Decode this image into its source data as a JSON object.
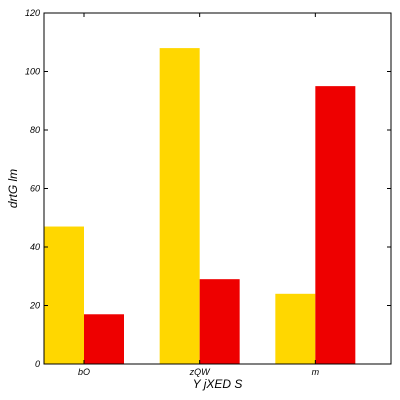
{
  "chart_data": {
    "type": "bar",
    "categories": [
      "bO",
      "zQW",
      "m"
    ],
    "series": [
      {
        "values": [
          47,
          108,
          24
        ],
        "color": "#ffd700"
      },
      {
        "values": [
          17,
          29,
          95
        ],
        "color": "#ee0000"
      }
    ],
    "xlabel": "Y jXED S",
    "ylabel": "drtG lm",
    "ylim": [
      0,
      120
    ],
    "yticks": [
      0,
      20,
      40,
      60,
      80,
      100,
      120
    ],
    "grid": false,
    "legend": "none"
  }
}
